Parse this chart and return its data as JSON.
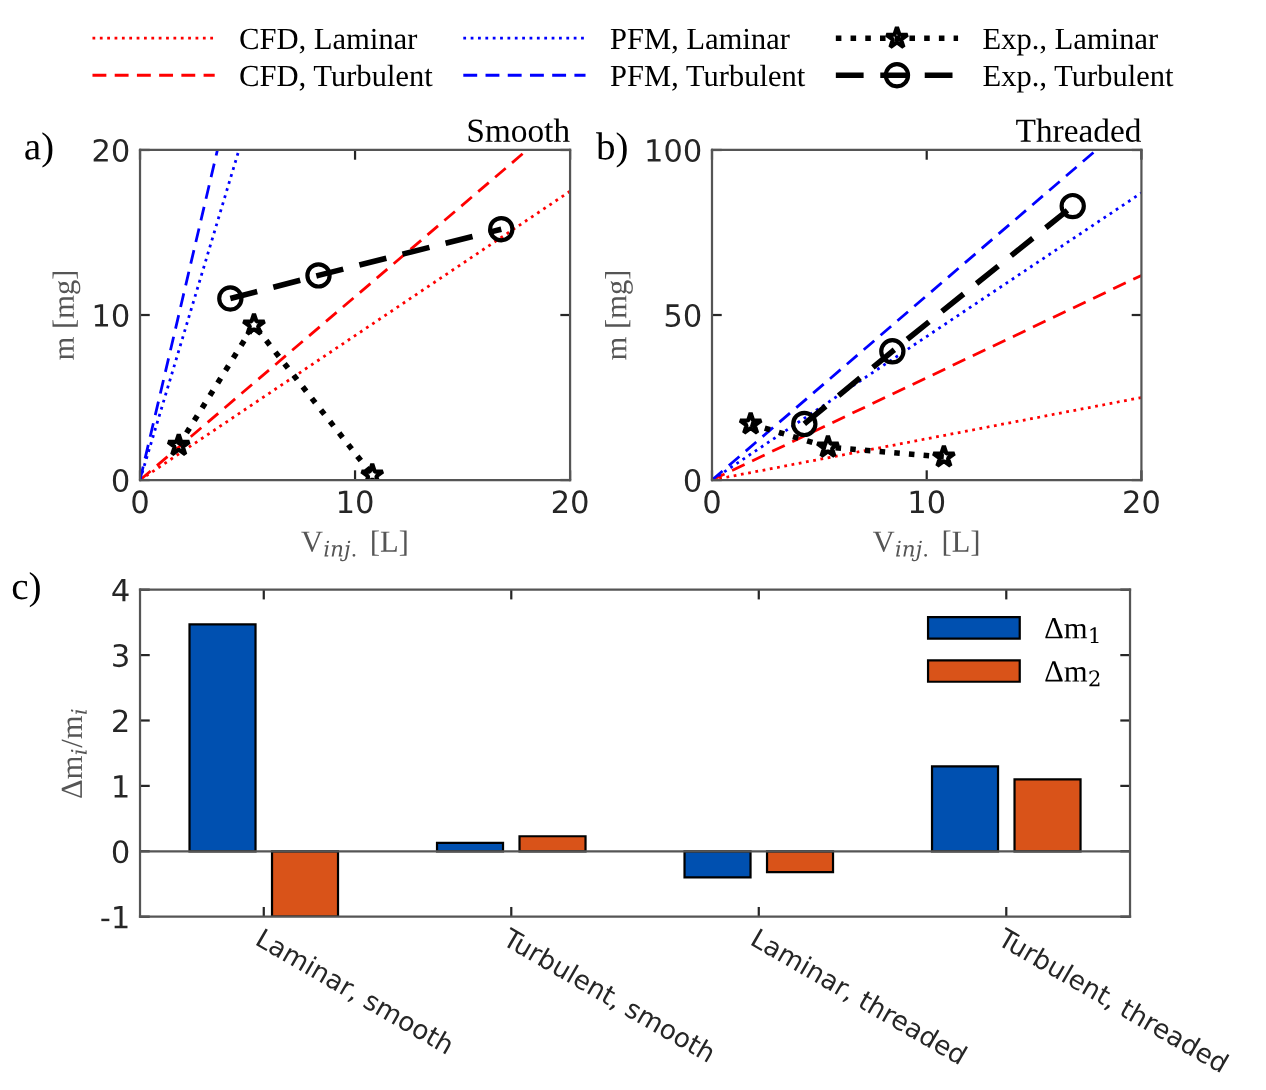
{
  "chart_data": [
    {
      "type": "line",
      "title": "Smooth",
      "xlabel": "V$_{inj.}$ [L]",
      "ylabel": "m [mg]",
      "annotations": [
        "a)"
      ],
      "xlim": [
        0,
        20
      ],
      "ylim": [
        0,
        20
      ],
      "xticks": [
        0,
        10,
        20
      ],
      "yticks": [
        0,
        10,
        20
      ],
      "grid": false,
      "legend": "top",
      "series": [
        {
          "name": "CFD, Laminar",
          "color": "#ff0000",
          "line_style": "dotted",
          "marker": "none",
          "x": [
            0,
            20
          ],
          "values": [
            0,
            17.5
          ]
        },
        {
          "name": "CFD, Turbulent",
          "color": "#ff0000",
          "line_style": "dashed",
          "marker": "none",
          "x": [
            0,
            18
          ],
          "values": [
            0,
            20
          ]
        },
        {
          "name": "PFM, Laminar",
          "color": "#0000ff",
          "line_style": "dotted",
          "marker": "none",
          "x": [
            0,
            4.6
          ],
          "values": [
            0,
            20
          ]
        },
        {
          "name": "PFM, Turbulent",
          "color": "#0000ff",
          "line_style": "dashed",
          "marker": "none",
          "x": [
            0,
            3.6
          ],
          "values": [
            0,
            20
          ]
        },
        {
          "name": "Exp., Laminar",
          "color": "#000000",
          "line_style": "dotted",
          "marker": "star",
          "x": [
            1.8,
            5.3,
            10.8
          ],
          "values": [
            2.1,
            9.4,
            0.3
          ]
        },
        {
          "name": "Exp., Turbulent",
          "color": "#000000",
          "line_style": "dashed",
          "marker": "circle",
          "x": [
            4.2,
            8.3,
            16.8
          ],
          "values": [
            11.0,
            12.4,
            15.2
          ]
        }
      ]
    },
    {
      "type": "line",
      "title": "Threaded",
      "xlabel": "V$_{inj.}$ [L]",
      "ylabel": "m [mg]",
      "annotations": [
        "b)"
      ],
      "xlim": [
        0,
        20
      ],
      "ylim": [
        0,
        100
      ],
      "xticks": [
        0,
        10,
        20
      ],
      "yticks": [
        0,
        50,
        100
      ],
      "grid": false,
      "series": [
        {
          "color": "#ff0000",
          "line_style": "dotted",
          "marker": "none",
          "x": [
            0,
            20
          ],
          "values": [
            0,
            25
          ]
        },
        {
          "color": "#ff0000",
          "line_style": "dashed",
          "marker": "none",
          "x": [
            0,
            20
          ],
          "values": [
            0,
            62
          ]
        },
        {
          "color": "#0000ff",
          "line_style": "dotted",
          "marker": "none",
          "x": [
            0,
            20
          ],
          "values": [
            0,
            87
          ]
        },
        {
          "color": "#0000ff",
          "line_style": "dashed",
          "marker": "none",
          "x": [
            0,
            17.9
          ],
          "values": [
            0,
            100
          ]
        },
        {
          "color": "#000000",
          "line_style": "dotted",
          "marker": "star",
          "x": [
            1.8,
            5.4,
            10.8
          ],
          "values": [
            17,
            10,
            7
          ]
        },
        {
          "color": "#000000",
          "line_style": "dashed",
          "marker": "circle",
          "x": [
            4.3,
            8.4,
            16.8
          ],
          "values": [
            17,
            39,
            83
          ]
        }
      ]
    },
    {
      "type": "bar",
      "ylabel": "Δm$_{i}$/m$_{i}$",
      "annotations": [
        "c)"
      ],
      "categories": [
        "Laminar, smooth",
        "Turbulent, smooth",
        "Laminar, threaded",
        "Turbulent, threaded"
      ],
      "ylim": [
        -1,
        4
      ],
      "yticks": [
        -1,
        0,
        1,
        2,
        3,
        4
      ],
      "grid": false,
      "ref_lines": [
        {
          "axis": "y",
          "value": 0,
          "color": "#555555"
        }
      ],
      "legend": "top right",
      "series": [
        {
          "name": "Δm$_{1}$",
          "color": "#0050b0",
          "values": [
            3.47,
            0.13,
            -0.4,
            1.3
          ]
        },
        {
          "name": "Δm$_{2}$",
          "color": "#d95319",
          "values": [
            -1.0,
            0.23,
            -0.32,
            1.1
          ]
        }
      ]
    }
  ]
}
